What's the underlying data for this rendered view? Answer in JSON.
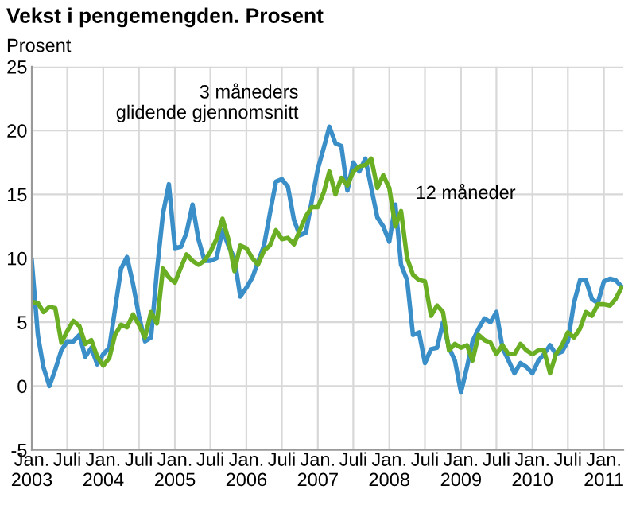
{
  "chart_data": {
    "type": "line",
    "title": "Vekst i pengemengden. Prosent",
    "ylabel": "Prosent",
    "x": [
      "2003-01",
      "2003-02",
      "2003-03",
      "2003-04",
      "2003-05",
      "2003-06",
      "2003-07",
      "2003-08",
      "2003-09",
      "2003-10",
      "2003-11",
      "2003-12",
      "2004-01",
      "2004-02",
      "2004-03",
      "2004-04",
      "2004-05",
      "2004-06",
      "2004-07",
      "2004-08",
      "2004-09",
      "2004-10",
      "2004-11",
      "2004-12",
      "2005-01",
      "2005-02",
      "2005-03",
      "2005-04",
      "2005-05",
      "2005-06",
      "2005-07",
      "2005-08",
      "2005-09",
      "2005-10",
      "2005-11",
      "2005-12",
      "2006-01",
      "2006-02",
      "2006-03",
      "2006-04",
      "2006-05",
      "2006-06",
      "2006-07",
      "2006-08",
      "2006-09",
      "2006-10",
      "2006-11",
      "2006-12",
      "2007-01",
      "2007-02",
      "2007-03",
      "2007-04",
      "2007-05",
      "2007-06",
      "2007-07",
      "2007-08",
      "2007-09",
      "2007-10",
      "2007-11",
      "2007-12",
      "2008-01",
      "2008-02",
      "2008-03",
      "2008-04",
      "2008-05",
      "2008-06",
      "2008-07",
      "2008-08",
      "2008-09",
      "2008-10",
      "2008-11",
      "2008-12",
      "2009-01",
      "2009-02",
      "2009-03",
      "2009-04",
      "2009-05",
      "2009-06",
      "2009-07",
      "2009-08",
      "2009-09",
      "2009-10",
      "2009-11",
      "2009-12",
      "2010-01",
      "2010-02",
      "2010-03",
      "2010-04",
      "2010-05",
      "2010-06",
      "2010-07",
      "2010-08",
      "2010-09",
      "2010-10",
      "2010-11",
      "2010-12",
      "2011-01",
      "2011-02",
      "2011-03",
      "2011-04"
    ],
    "series": [
      {
        "name": "3 måneders\nglidende gjennomsnitt",
        "color": "#3a8fc8",
        "values": [
          9.8,
          4,
          1.5,
          0,
          1.3,
          2.8,
          3.5,
          3.5,
          4,
          2.3,
          3,
          1.7,
          2.5,
          3,
          6,
          9.2,
          10.1,
          8,
          5.5,
          3.5,
          3.8,
          9,
          13.5,
          15.8,
          10.8,
          10.9,
          12,
          14.2,
          11.5,
          9.8,
          9.8,
          10,
          12.2,
          11,
          10,
          7,
          7.7,
          8.5,
          9.7,
          11,
          13.5,
          16,
          16.2,
          15.6,
          13,
          11.8,
          12,
          14.5,
          17,
          18.7,
          20.3,
          19,
          18.8,
          15.3,
          17.5,
          16.8,
          17.8,
          15.5,
          13.2,
          12.5,
          11.3,
          14.2,
          9.5,
          8.3,
          4,
          4.2,
          1.8,
          2.9,
          3,
          5,
          3,
          2,
          -0.5,
          1.5,
          3.5,
          4.5,
          5.3,
          5,
          5.8,
          3,
          2,
          1,
          1.8,
          1.5,
          1,
          2,
          2.5,
          3.2,
          2.5,
          2.7,
          3.5,
          6.5,
          8.3,
          8.3,
          6.8,
          6.5,
          8.2,
          8.4,
          8.3,
          7.8
        ]
      },
      {
        "name": "12 måneder",
        "color": "#6aaf23",
        "values": [
          6.6,
          6.5,
          5.8,
          6.2,
          6.1,
          3.4,
          4.3,
          5.1,
          4.7,
          3.3,
          3.6,
          2.3,
          1.6,
          2.2,
          4,
          4.8,
          4.6,
          5.6,
          4.8,
          3.8,
          5.8,
          4.9,
          9.2,
          8.5,
          8.1,
          9.3,
          10.3,
          9.8,
          9.5,
          9.8,
          10.5,
          11.5,
          13.1,
          11.5,
          9,
          11,
          10.8,
          10,
          9.5,
          10.6,
          11,
          12.2,
          11.5,
          11.6,
          11.1,
          12.2,
          13.3,
          14,
          14,
          15.2,
          16.8,
          15,
          16.3,
          15.7,
          16.8,
          17.2,
          17.3,
          17.8,
          15.5,
          16.5,
          15.5,
          12.5,
          13.7,
          10,
          8.7,
          8.3,
          8.2,
          5.5,
          6.3,
          5.8,
          2.8,
          3.3,
          3,
          3.2,
          2,
          4,
          3.6,
          3.4,
          2.5,
          3.2,
          2.5,
          2.5,
          3.3,
          2.8,
          2.5,
          2.8,
          2.8,
          1,
          2.5,
          3.2,
          4.2,
          3.8,
          4.5,
          5.8,
          5.5,
          6.4,
          6.4,
          6.3,
          6.8,
          7.7
        ]
      }
    ],
    "xlim": [
      "2003-01",
      "2011-04-10"
    ],
    "xticks": [
      {
        "value": "2003-01",
        "label": "Jan.\n2003"
      },
      {
        "value": "2003-07",
        "label": "Juli"
      },
      {
        "value": "2004-01",
        "label": "Jan.\n2004"
      },
      {
        "value": "2004-07",
        "label": "Juli"
      },
      {
        "value": "2005-01",
        "label": "Jan.\n2005"
      },
      {
        "value": "2005-07",
        "label": "Juli"
      },
      {
        "value": "2006-01",
        "label": "Jan.\n2006"
      },
      {
        "value": "2006-07",
        "label": "Juli"
      },
      {
        "value": "2007-01",
        "label": "Jan.\n2007"
      },
      {
        "value": "2007-07",
        "label": "Juli"
      },
      {
        "value": "2008-01",
        "label": "Jan.\n2008"
      },
      {
        "value": "2008-07",
        "label": "Juli"
      },
      {
        "value": "2009-01",
        "label": "Jan.\n2009"
      },
      {
        "value": "2009-07",
        "label": "Juli"
      },
      {
        "value": "2010-01",
        "label": "Jan.\n2010"
      },
      {
        "value": "2010-07",
        "label": "Juli"
      },
      {
        "value": "2011-01",
        "label": "Jan.\n2011"
      }
    ],
    "ylim": [
      -5,
      25
    ],
    "yticks": [
      -5,
      0,
      5,
      10,
      15,
      20,
      25
    ],
    "grid": true,
    "marker": "none",
    "line_style": "solid"
  }
}
